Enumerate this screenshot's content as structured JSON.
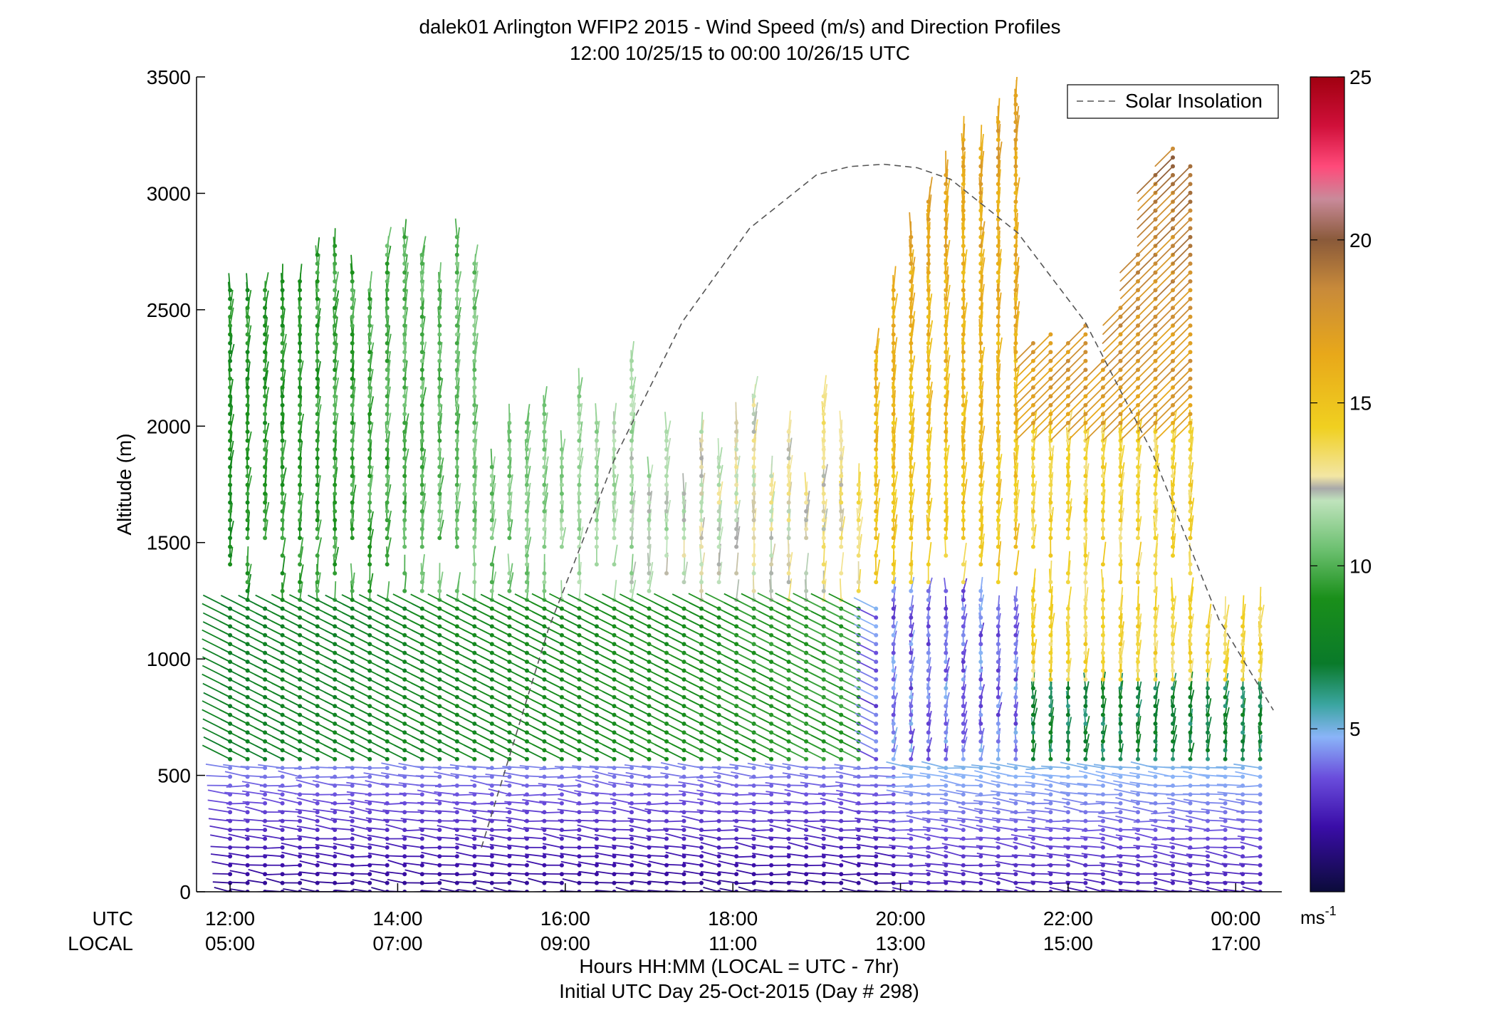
{
  "chart_data": {
    "type": "scatter",
    "title": "dalek01 Arlington WFIP2 2015 - Wind Speed (m/s) and Direction Profiles",
    "subtitle": "12:00 10/25/15 to 00:00 10/26/15  UTC",
    "ylabel": "Altitude (m)",
    "xlabel": "Hours HH:MM  (LOCAL = UTC - 7hr)",
    "xlabel2": "Initial UTC Day 25-Oct-2015 (Day # 298)",
    "utc_row_label": "UTC",
    "local_row_label": "LOCAL",
    "ylim": [
      0,
      3500
    ],
    "xlim_hours_utc": [
      11.6,
      24.55
    ],
    "y_ticks": [
      "0",
      "500",
      "1000",
      "1500",
      "2000",
      "2500",
      "3000",
      "3500"
    ],
    "x_ticks": [
      {
        "hour": 12,
        "utc": "12:00",
        "local": "05:00"
      },
      {
        "hour": 14,
        "utc": "14:00",
        "local": "07:00"
      },
      {
        "hour": 16,
        "utc": "16:00",
        "local": "09:00"
      },
      {
        "hour": 18,
        "utc": "18:00",
        "local": "11:00"
      },
      {
        "hour": 20,
        "utc": "20:00",
        "local": "13:00"
      },
      {
        "hour": 22,
        "utc": "22:00",
        "local": "15:00"
      },
      {
        "hour": 24,
        "utc": "00:00",
        "local": "17:00"
      }
    ],
    "legend": {
      "entries": [
        "Solar Insolation"
      ],
      "placement": "top-right",
      "line_color": "#555555"
    },
    "colorbar": {
      "label": "ms",
      "label_exp": "-1",
      "range": [
        0,
        25
      ],
      "ticks": [
        "5",
        "10",
        "15",
        "20",
        "25"
      ]
    },
    "solar_insolation": {
      "x_hours_utc": [
        15.0,
        15.8,
        16.6,
        17.4,
        18.2,
        19.0,
        19.4,
        19.8,
        20.2,
        20.6,
        21.4,
        22.2,
        23.0,
        23.8,
        24.45
      ],
      "altitude_equiv": [
        190,
        1130,
        1870,
        2450,
        2850,
        3080,
        3115,
        3125,
        3110,
        3060,
        2830,
        2450,
        1890,
        1170,
        780
      ]
    },
    "barbs_note": "wind barb profiles approx every 12.5 min, 12:00–00:30 UTC; levels 0–3500 m; speed coloured by colorbar"
  }
}
